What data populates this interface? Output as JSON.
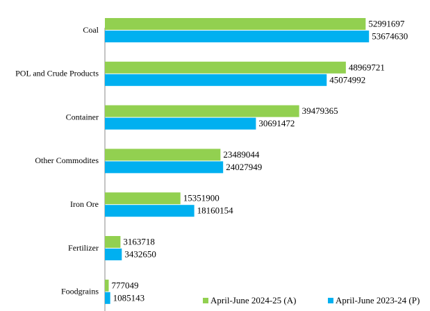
{
  "chart_data": {
    "type": "hbar",
    "categories": [
      "Coal",
      "POL and Crude Products",
      "Container",
      "Other Commodites",
      "Iron Ore",
      "Fertilizer",
      "Foodgrains"
    ],
    "series": [
      {
        "name": "April-June 2024-25 (A)",
        "color": "#92d050",
        "values": [
          52991697,
          48969721,
          39479365,
          23489044,
          15351900,
          3163718,
          777049
        ]
      },
      {
        "name": "April-June 2023-24 (P)",
        "color": "#00b0f0",
        "values": [
          53674630,
          45074992,
          30691472,
          24027949,
          18160154,
          3432650,
          1085143
        ]
      }
    ],
    "xlim": [
      0,
      60000000
    ],
    "legend": "lower right"
  }
}
